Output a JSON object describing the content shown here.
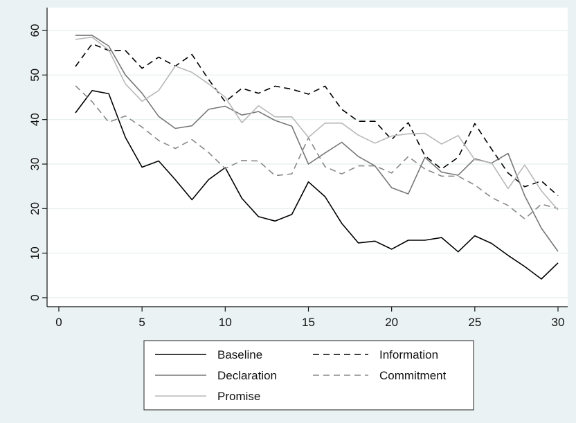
{
  "chart_data": {
    "type": "line",
    "title": "",
    "xlabel": "",
    "ylabel": "",
    "xlim": [
      0,
      30
    ],
    "ylim": [
      0,
      60
    ],
    "x_ticks": [
      0,
      5,
      10,
      15,
      20,
      25,
      30
    ],
    "y_ticks": [
      0,
      10,
      20,
      30,
      40,
      50,
      60
    ],
    "grid": true,
    "legend_position": "bottom",
    "x": [
      1,
      2,
      3,
      4,
      5,
      6,
      7,
      8,
      9,
      10,
      11,
      12,
      13,
      14,
      15,
      16,
      17,
      18,
      19,
      20,
      21,
      22,
      23,
      24,
      25,
      26,
      27,
      28,
      29,
      30
    ],
    "series": [
      {
        "name": "Baseline",
        "color": "#000000",
        "dash": "solid",
        "values": [
          41.5,
          46.5,
          45.8,
          36,
          29.3,
          30.7,
          26.5,
          22,
          26.5,
          29.2,
          22.3,
          18.2,
          17.2,
          18.7,
          26,
          22.7,
          16.7,
          12.3,
          12.7,
          10.9,
          12.9,
          12.9,
          13.5,
          10.3,
          13.9,
          12.2,
          9.5,
          7,
          4.2,
          7.8
        ]
      },
      {
        "name": "Information",
        "color": "#000000",
        "dash": "dashed",
        "values": [
          51.9,
          57,
          55.5,
          55.5,
          51.5,
          54,
          52,
          54.6,
          49,
          44,
          47,
          45.9,
          47.5,
          46.8,
          45.7,
          47.5,
          42.3,
          39.6,
          39.6,
          35.5,
          39.3,
          31.9,
          28.9,
          31.5,
          39.1,
          33.4,
          28,
          24.9,
          26.2,
          22.9
        ]
      },
      {
        "name": "Declaration",
        "color": "#777777",
        "dash": "solid",
        "values": [
          58.9,
          58.9,
          56.5,
          50,
          45.9,
          40.7,
          38,
          38.6,
          42.3,
          43,
          41,
          41.8,
          39.8,
          38.5,
          30,
          32.5,
          34.9,
          31.7,
          29.6,
          24.7,
          23.3,
          31.5,
          28.2,
          27.5,
          31.2,
          30.2,
          32.4,
          22.9,
          15.6,
          10.4
        ]
      },
      {
        "name": "Commitment",
        "color": "#888888",
        "dash": "dashed",
        "values": [
          47.6,
          44,
          39.4,
          40.8,
          38.3,
          35.3,
          33.5,
          35.5,
          32.6,
          29,
          30.8,
          30.7,
          27.4,
          27.8,
          35.9,
          29.4,
          27.8,
          29.6,
          29.6,
          28,
          31.7,
          28.9,
          27.3,
          27.3,
          25.3,
          22.5,
          20.7,
          17.7,
          21,
          20
        ]
      },
      {
        "name": "Promise",
        "color": "#b8b8b8",
        "dash": "solid",
        "values": [
          58,
          58.5,
          55.6,
          48,
          44.1,
          46.5,
          52,
          50.6,
          48,
          45,
          39.3,
          43.1,
          40.6,
          40.6,
          36,
          39.2,
          39.2,
          36.5,
          34.7,
          36.3,
          36.8,
          36.9,
          34.5,
          36.4,
          31,
          30.3,
          24.5,
          29.8,
          24,
          19.7
        ]
      }
    ],
    "legend": {
      "layout": [
        [
          "Baseline",
          "Information"
        ],
        [
          "Declaration",
          "Commitment"
        ],
        [
          "Promise"
        ]
      ]
    }
  }
}
